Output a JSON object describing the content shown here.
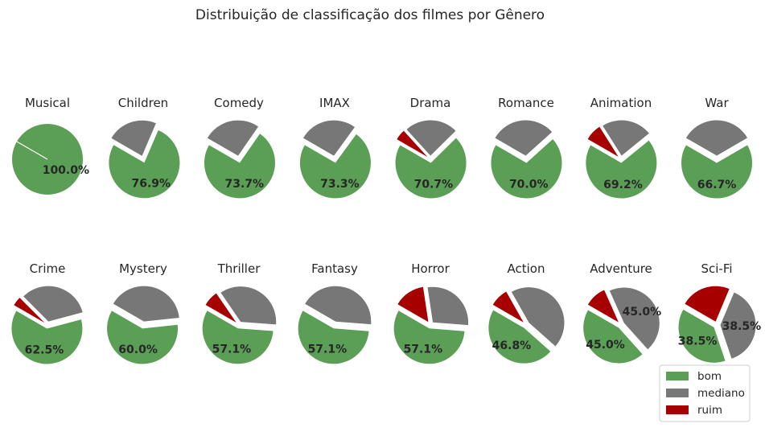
{
  "chart_data": {
    "type": "pie",
    "title": "Distribuição de classificação dos filmes por Gênero",
    "colors": {
      "bom": "#5b9e56",
      "mediano": "#777777",
      "ruim": "#a70000"
    },
    "legend": {
      "placement": "bottom-right",
      "entries": [
        "bom",
        "mediano",
        "ruim"
      ]
    },
    "categories": [
      "bom",
      "mediano",
      "ruim"
    ],
    "charts": [
      {
        "genre": "Musical",
        "values": [
          100.0,
          0,
          0
        ],
        "labels": [
          "100.0%",
          "",
          ""
        ]
      },
      {
        "genre": "Children",
        "values": [
          76.9,
          23.1,
          0
        ],
        "labels": [
          "76.9%",
          "",
          ""
        ]
      },
      {
        "genre": "Comedy",
        "values": [
          73.7,
          26.3,
          0
        ],
        "labels": [
          "73.7%",
          "",
          ""
        ]
      },
      {
        "genre": "IMAX",
        "values": [
          73.3,
          26.7,
          0
        ],
        "labels": [
          "73.3%",
          "",
          ""
        ]
      },
      {
        "genre": "Drama",
        "values": [
          70.7,
          24.4,
          4.9
        ],
        "labels": [
          "70.7%",
          "",
          ""
        ]
      },
      {
        "genre": "Romance",
        "values": [
          70.0,
          30.0,
          0
        ],
        "labels": [
          "70.0%",
          "",
          ""
        ]
      },
      {
        "genre": "Animation",
        "values": [
          69.2,
          23.1,
          7.7
        ],
        "labels": [
          "69.2%",
          "",
          ""
        ]
      },
      {
        "genre": "War",
        "values": [
          66.7,
          33.3,
          0
        ],
        "labels": [
          "66.7%",
          "",
          ""
        ]
      },
      {
        "genre": "Crime",
        "values": [
          62.5,
          33.3,
          4.2
        ],
        "labels": [
          "62.5%",
          "",
          ""
        ]
      },
      {
        "genre": "Mystery",
        "values": [
          60.0,
          40.0,
          0
        ],
        "labels": [
          "60.0%",
          "",
          ""
        ]
      },
      {
        "genre": "Thriller",
        "values": [
          57.1,
          35.7,
          7.1
        ],
        "labels": [
          "57.1%",
          "",
          ""
        ]
      },
      {
        "genre": "Fantasy",
        "values": [
          57.1,
          42.9,
          0
        ],
        "labels": [
          "57.1%",
          "",
          ""
        ]
      },
      {
        "genre": "Horror",
        "values": [
          57.1,
          28.6,
          14.3
        ],
        "labels": [
          "57.1%",
          "",
          ""
        ]
      },
      {
        "genre": "Action",
        "values": [
          46.8,
          44.7,
          8.5
        ],
        "labels": [
          "46.8%",
          "",
          ""
        ]
      },
      {
        "genre": "Adventure",
        "values": [
          45.0,
          45.0,
          10.0
        ],
        "labels": [
          "45.0%",
          "45.0%",
          ""
        ]
      },
      {
        "genre": "Sci-Fi",
        "values": [
          38.5,
          38.5,
          23.0
        ],
        "labels": [
          "38.5%",
          "38.5%",
          ""
        ]
      }
    ]
  }
}
